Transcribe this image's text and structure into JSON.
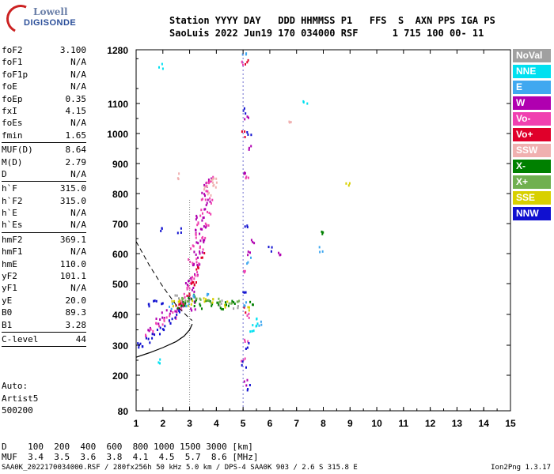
{
  "logo": {
    "line1": "Lowell",
    "line2": "DIGISONDE"
  },
  "header": {
    "line1": "Station YYYY DAY   DDD HHMMSS P1   FFS  S  AXN PPS IGA PS",
    "line2": "SaoLuis 2022 Jun19 170 034000 RSF      1 715 100 00- 11"
  },
  "params": {
    "group1": [
      {
        "k": "foF2",
        "v": "3.100"
      },
      {
        "k": "foF1",
        "v": "N/A"
      },
      {
        "k": "foF1p",
        "v": "N/A"
      },
      {
        "k": "foE",
        "v": "N/A"
      },
      {
        "k": "foEp",
        "v": "0.35"
      },
      {
        "k": "fxI",
        "v": "4.15"
      },
      {
        "k": "foEs",
        "v": "N/A"
      },
      {
        "k": "fmin",
        "v": "1.65"
      }
    ],
    "group2": [
      {
        "k": "MUF(D)",
        "v": "8.64"
      },
      {
        "k": "M(D)",
        "v": "2.79"
      },
      {
        "k": "D",
        "v": "N/A"
      }
    ],
    "group3": [
      {
        "k": "h`F",
        "v": "315.0"
      },
      {
        "k": "h`F2",
        "v": "315.0"
      },
      {
        "k": "h`E",
        "v": "N/A"
      },
      {
        "k": "h`Es",
        "v": "N/A"
      }
    ],
    "group4": [
      {
        "k": "hmF2",
        "v": "369.1"
      },
      {
        "k": "hmF1",
        "v": "N/A"
      },
      {
        "k": "hmE",
        "v": "110.0"
      },
      {
        "k": "yF2",
        "v": "101.1"
      },
      {
        "k": "yF1",
        "v": "N/A"
      },
      {
        "k": "yE",
        "v": "20.0"
      },
      {
        "k": "B0",
        "v": "89.3"
      },
      {
        "k": "B1",
        "v": "3.28"
      }
    ],
    "group5": [
      {
        "k": "C-level",
        "v": "44"
      }
    ]
  },
  "auto": {
    "line1": "Auto:",
    "line2": "Artist5",
    "line3": "500200"
  },
  "legend": [
    {
      "label": "NoVal",
      "color": "#a0a0a0"
    },
    {
      "label": "NNE",
      "color": "#00e0f0"
    },
    {
      "label": "E",
      "color": "#40a8f0"
    },
    {
      "label": "W",
      "color": "#b000b0"
    },
    {
      "label": "Vo-",
      "color": "#f040b0"
    },
    {
      "label": "Vo+",
      "color": "#e0002a"
    },
    {
      "label": "SSW",
      "color": "#f0b0b0"
    },
    {
      "label": "X-",
      "color": "#008000"
    },
    {
      "label": "X+",
      "color": "#70b050"
    },
    {
      "label": "SSE",
      "color": "#d8d000"
    },
    {
      "label": "NNW",
      "color": "#1010d0"
    }
  ],
  "muf_table": {
    "line1": "D    100  200  400  600  800 1000 1500 3000 [km]",
    "line2": "MUF  3.4  3.5  3.6  3.8  4.1  4.5  5.7  8.6 [MHz]"
  },
  "footer": {
    "left": "SAA0K_2022170034000.RSF / 280fx256h 50 kHz 5.0 km / DPS-4 SAA0K 903 / 2.6 S 315.8 E",
    "right": "Ion2Png 1.3.17"
  },
  "chart_data": {
    "type": "scatter",
    "title": "",
    "xlabel": "",
    "ylabel": "",
    "xlim": [
      1,
      15
    ],
    "ylim": [
      80,
      1280
    ],
    "x_ticks": [
      1,
      2,
      3,
      4,
      5,
      6,
      7,
      8,
      9,
      10,
      11,
      12,
      13,
      14,
      15
    ],
    "y_ticks": [
      80,
      200,
      300,
      400,
      500,
      600,
      700,
      800,
      900,
      1000,
      1100,
      1280
    ],
    "dashed_marker_freq": 5,
    "dotted_marker_freq": 3,
    "profile_curve": [
      [
        1,
        260
      ],
      [
        1.5,
        275
      ],
      [
        2,
        292
      ],
      [
        2.5,
        312
      ],
      [
        2.8,
        330
      ],
      [
        3.0,
        350
      ],
      [
        3.1,
        369
      ]
    ],
    "muf_dashed_curve": [
      [
        1,
        640
      ],
      [
        1.5,
        560
      ],
      [
        2,
        490
      ],
      [
        2.5,
        430
      ],
      [
        2.9,
        395
      ],
      [
        3.1,
        380
      ]
    ],
    "clusters": [
      {
        "color": "#b000b0",
        "points": [
          [
            2.9,
            500
          ],
          [
            3.0,
            520
          ],
          [
            3.1,
            560
          ],
          [
            3.2,
            600
          ],
          [
            3.3,
            640
          ],
          [
            3.4,
            680
          ],
          [
            3.5,
            720
          ],
          [
            3.6,
            760
          ],
          [
            3.5,
            800
          ],
          [
            3.6,
            830
          ],
          [
            3.7,
            850
          ],
          [
            3.3,
            560
          ],
          [
            3.2,
            540
          ],
          [
            3.1,
            480
          ],
          [
            3.0,
            460
          ],
          [
            2.8,
            440
          ],
          [
            2.5,
            420
          ],
          [
            2.2,
            410
          ],
          [
            2.0,
            400
          ],
          [
            1.8,
            380
          ],
          [
            1.5,
            350
          ],
          [
            3.4,
            600
          ],
          [
            3.5,
            640
          ],
          [
            3.6,
            700
          ],
          [
            3.7,
            780
          ],
          [
            3.3,
            720
          ],
          [
            3.2,
            680
          ],
          [
            5.1,
            1060
          ],
          [
            5.2,
            960
          ],
          [
            5.0,
            880
          ],
          [
            5.3,
            640
          ],
          [
            6.3,
            605
          ],
          [
            5.1,
            180
          ],
          [
            5.2,
            600
          ],
          [
            3.1,
            420
          ],
          [
            3.2,
            450
          ]
        ]
      },
      {
        "color": "#f040b0",
        "points": [
          [
            2.6,
            420
          ],
          [
            2.7,
            440
          ],
          [
            2.8,
            460
          ],
          [
            2.9,
            480
          ],
          [
            3.0,
            500
          ],
          [
            3.1,
            520
          ],
          [
            3.2,
            540
          ],
          [
            3.3,
            580
          ],
          [
            3.4,
            620
          ],
          [
            3.5,
            660
          ],
          [
            3.6,
            700
          ],
          [
            3.7,
            740
          ],
          [
            3.8,
            780
          ],
          [
            3.6,
            820
          ],
          [
            3.5,
            780
          ],
          [
            3.4,
            740
          ],
          [
            3.3,
            700
          ],
          [
            3.2,
            660
          ],
          [
            3.1,
            620
          ],
          [
            3.0,
            580
          ],
          [
            2.4,
            400
          ],
          [
            2.2,
            390
          ],
          [
            2.0,
            380
          ],
          [
            1.8,
            370
          ],
          [
            1.6,
            350
          ],
          [
            1.4,
            330
          ],
          [
            5.0,
            1240
          ],
          [
            5.1,
            860
          ],
          [
            5.0,
            540
          ],
          [
            5.2,
            400
          ],
          [
            5.1,
            320
          ],
          [
            5.0,
            250
          ],
          [
            3.7,
            840
          ],
          [
            3.8,
            850
          ]
        ]
      },
      {
        "color": "#e0002a",
        "points": [
          [
            2.5,
            430
          ],
          [
            2.9,
            470
          ],
          [
            3.1,
            510
          ],
          [
            3.3,
            550
          ],
          [
            3.5,
            600
          ],
          [
            5.1,
            1240
          ],
          [
            5.0,
            1000
          ],
          [
            5.1,
            420
          ],
          [
            3.2,
            500
          ],
          [
            2.7,
            440
          ]
        ]
      },
      {
        "color": "#1010d0",
        "points": [
          [
            1.0,
            300
          ],
          [
            1.2,
            305
          ],
          [
            1.4,
            320
          ],
          [
            1.6,
            335
          ],
          [
            1.8,
            350
          ],
          [
            2.0,
            360
          ],
          [
            2.2,
            380
          ],
          [
            2.4,
            395
          ],
          [
            2.6,
            410
          ],
          [
            1.5,
            430
          ],
          [
            1.7,
            440
          ],
          [
            2.0,
            440
          ],
          [
            5.0,
            1080
          ],
          [
            5.2,
            1000
          ],
          [
            5.1,
            700
          ],
          [
            5.0,
            480
          ],
          [
            5.1,
            300
          ],
          [
            5.0,
            240
          ],
          [
            6.0,
            620
          ],
          [
            2.6,
            680
          ],
          [
            1.9,
            680
          ],
          [
            5.2,
            160
          ]
        ]
      },
      {
        "color": "#008000",
        "points": [
          [
            2.8,
            440
          ],
          [
            3.0,
            450
          ],
          [
            3.2,
            440
          ],
          [
            3.4,
            430
          ],
          [
            3.6,
            440
          ],
          [
            3.8,
            440
          ],
          [
            4.0,
            440
          ],
          [
            4.2,
            430
          ],
          [
            4.4,
            440
          ],
          [
            4.6,
            440
          ],
          [
            5.3,
            440
          ],
          [
            3.1,
            460
          ],
          [
            7.9,
            670
          ],
          [
            2.6,
            430
          ]
        ]
      },
      {
        "color": "#70b050",
        "points": [
          [
            2.7,
            450
          ],
          [
            2.9,
            455
          ],
          [
            3.3,
            445
          ],
          [
            3.7,
            445
          ],
          [
            4.1,
            445
          ],
          [
            4.5,
            440
          ],
          [
            4.8,
            440
          ]
        ]
      },
      {
        "color": "#d8d000",
        "points": [
          [
            2.4,
            440
          ],
          [
            2.6,
            455
          ],
          [
            3.0,
            440
          ],
          [
            3.5,
            450
          ],
          [
            3.9,
            450
          ],
          [
            4.3,
            435
          ],
          [
            5.2,
            420
          ],
          [
            8.9,
            840
          ]
        ]
      },
      {
        "color": "#f0b0b0",
        "points": [
          [
            3.6,
            820
          ],
          [
            3.8,
            840
          ],
          [
            3.9,
            860
          ],
          [
            3.7,
            800
          ],
          [
            2.6,
            860
          ],
          [
            6.7,
            1050
          ],
          [
            3.9,
            830
          ]
        ]
      },
      {
        "color": "#40a8f0",
        "points": [
          [
            2.3,
            430
          ],
          [
            2.9,
            440
          ],
          [
            3.2,
            460
          ],
          [
            3.6,
            460
          ],
          [
            5.0,
            440
          ],
          [
            5.0,
            1270
          ],
          [
            5.2,
            580
          ],
          [
            7.9,
            615
          ],
          [
            5.6,
            375
          ]
        ]
      },
      {
        "color": "#00e0f0",
        "points": [
          [
            1.9,
            1230
          ],
          [
            5.3,
            350
          ],
          [
            5.5,
            380
          ],
          [
            7.3,
            1110
          ],
          [
            5.4,
            360
          ],
          [
            1.9,
            250
          ]
        ]
      },
      {
        "color": "#a0a0a0",
        "points": [
          [
            4.1,
            440
          ],
          [
            4.7,
            430
          ],
          [
            2.5,
            460
          ]
        ]
      }
    ]
  }
}
